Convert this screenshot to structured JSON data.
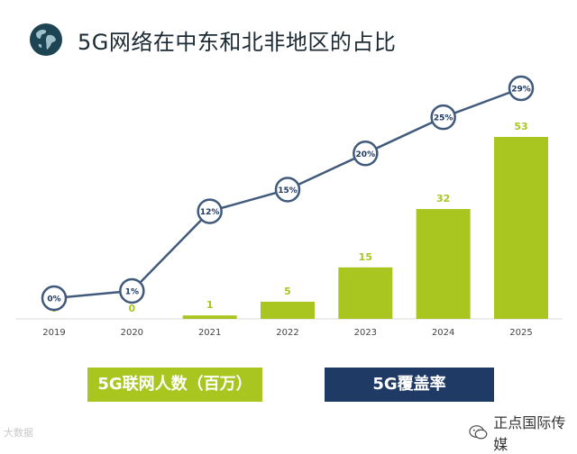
{
  "title": "5G网络在中东和北非地区的占比",
  "legend": {
    "bars_label": "5G联网人数（百万）",
    "line_label": "5G覆盖率"
  },
  "watermark": {
    "left": "大数据",
    "right": "正点国际传媒"
  },
  "colors": {
    "bar": "#a8c520",
    "line": "#415a7c",
    "legend_line_bg": "#1f3a64",
    "title": "#1c2a33",
    "globe": "#1d4452"
  },
  "icons": [
    "globe-icon",
    "wechat-icon"
  ],
  "chart_data": {
    "type": "bar",
    "categories": [
      "2019",
      "2020",
      "2021",
      "2022",
      "2023",
      "2024",
      "2025"
    ],
    "series": [
      {
        "name": "5G联网人数（百万）",
        "type": "bar",
        "values": [
          0,
          0,
          1,
          5,
          15,
          32,
          53
        ]
      },
      {
        "name": "5G覆盖率",
        "type": "line",
        "values": [
          0,
          1,
          12,
          15,
          20,
          25,
          29
        ],
        "unit": "%"
      }
    ],
    "bar_labels": [
      "0",
      "0",
      "1",
      "5",
      "15",
      "32",
      "53"
    ],
    "line_labels": [
      "0%",
      "1%",
      "12%",
      "15%",
      "20%",
      "25%",
      "29%"
    ],
    "ylim_bars": [
      0,
      53
    ],
    "ylim_line": [
      0,
      29
    ],
    "grid": false,
    "legend_position": "bottom"
  }
}
